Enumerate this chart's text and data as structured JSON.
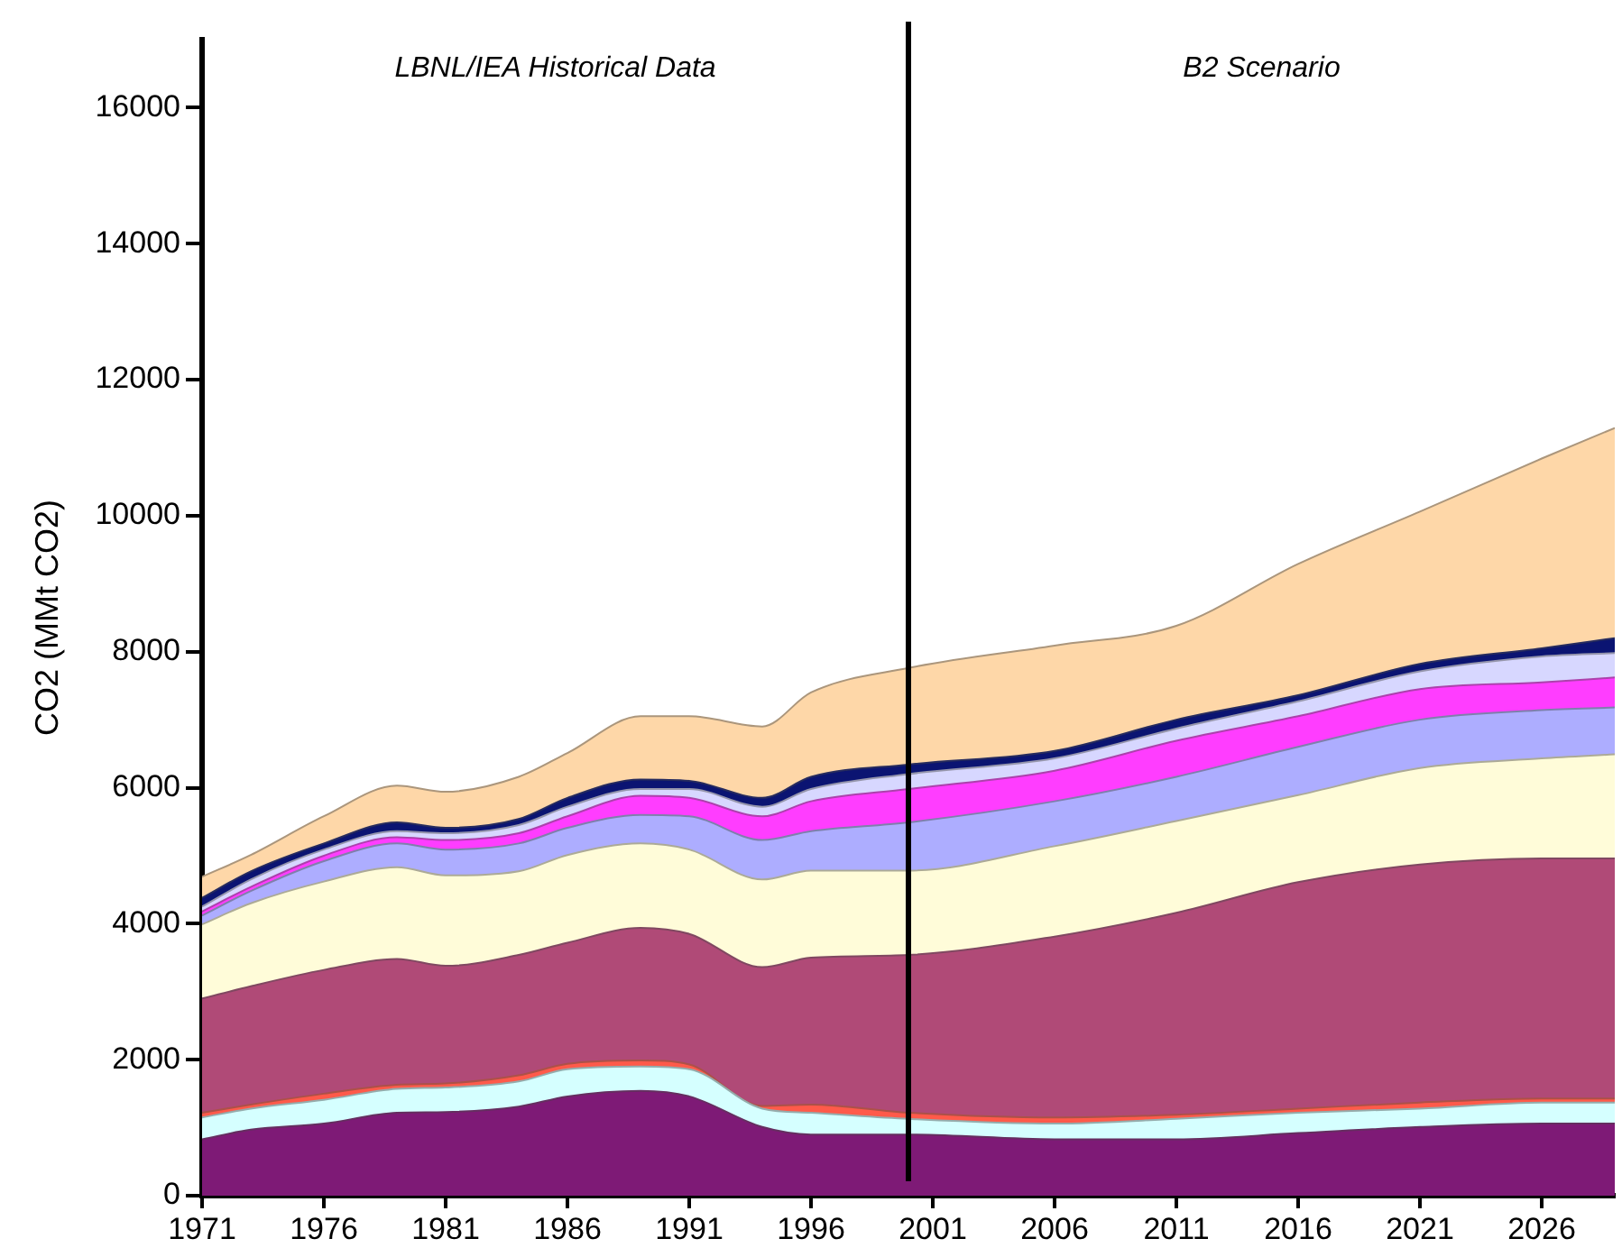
{
  "chart_data": {
    "type": "area",
    "stacked": true,
    "ylabel": "CO2 (MMt CO2)",
    "x": [
      1971,
      1973,
      1976,
      1979,
      1981,
      1984,
      1986,
      1989,
      1991,
      1994,
      1996,
      2000,
      2006,
      2011,
      2016,
      2021,
      2026,
      2029
    ],
    "xlim": [
      1971,
      2029
    ],
    "xticks": [
      1971,
      1976,
      1981,
      1986,
      1991,
      1996,
      2001,
      2006,
      2011,
      2016,
      2021,
      2026
    ],
    "ylim": [
      0,
      17000
    ],
    "yticks": [
      0,
      2000,
      4000,
      6000,
      8000,
      10000,
      12000,
      14000,
      16000
    ],
    "grid": false,
    "legend": false,
    "ref_lines": [
      {
        "axis": "x",
        "value": 2000,
        "color": "#000000"
      }
    ],
    "annotations": [
      "LBNL/IEA Historical Data",
      "B2 Scenario"
    ],
    "series": [
      {
        "color": "#7e1a76",
        "values": [
          830,
          970,
          1060,
          1220,
          1230,
          1310,
          1460,
          1540,
          1460,
          1010,
          900,
          900,
          830,
          830,
          920,
          1010,
          1060,
          1060
        ]
      },
      {
        "color": "#d5ffff",
        "values": [
          320,
          310,
          350,
          350,
          360,
          370,
          400,
          360,
          400,
          270,
          320,
          230,
          230,
          300,
          300,
          270,
          310,
          310
        ]
      },
      {
        "color": "#ff5a4a",
        "values": [
          70,
          60,
          90,
          60,
          60,
          90,
          80,
          90,
          70,
          40,
          120,
          90,
          90,
          60,
          60,
          90,
          60,
          60
        ]
      },
      {
        "color": "#b04a77",
        "values": [
          1680,
          1740,
          1820,
          1850,
          1730,
          1770,
          1780,
          1950,
          1920,
          2040,
          2160,
          2320,
          2660,
          2970,
          3330,
          3500,
          3530,
          3530
        ]
      },
      {
        "color": "#fffcd9",
        "values": [
          1090,
          1220,
          1300,
          1350,
          1330,
          1230,
          1290,
          1240,
          1240,
          1290,
          1280,
          1240,
          1330,
          1350,
          1280,
          1420,
          1470,
          1530
        ]
      },
      {
        "color": "#adadff",
        "values": [
          130,
          180,
          300,
          350,
          380,
          410,
          400,
          420,
          490,
          580,
          580,
          710,
          660,
          650,
          710,
          710,
          710,
          690
        ]
      },
      {
        "color": "#ff3dff",
        "values": [
          60,
          60,
          80,
          90,
          140,
          150,
          170,
          280,
          270,
          350,
          440,
          490,
          450,
          530,
          450,
          450,
          410,
          440
        ]
      },
      {
        "color": "#d7d7ff",
        "values": [
          70,
          110,
          90,
          90,
          100,
          120,
          140,
          100,
          130,
          140,
          180,
          220,
          180,
          180,
          220,
          260,
          380,
          360
        ]
      },
      {
        "color": "#0b1472",
        "values": [
          130,
          120,
          90,
          130,
          80,
          90,
          130,
          140,
          120,
          130,
          180,
          140,
          110,
          130,
          90,
          110,
          120,
          220
        ]
      },
      {
        "color": "#fed7a8",
        "values": [
          310,
          240,
          400,
          540,
          530,
          620,
          660,
          930,
          950,
          1050,
          1240,
          1420,
          1550,
          1380,
          1930,
          2240,
          2790,
          3090
        ]
      }
    ]
  }
}
